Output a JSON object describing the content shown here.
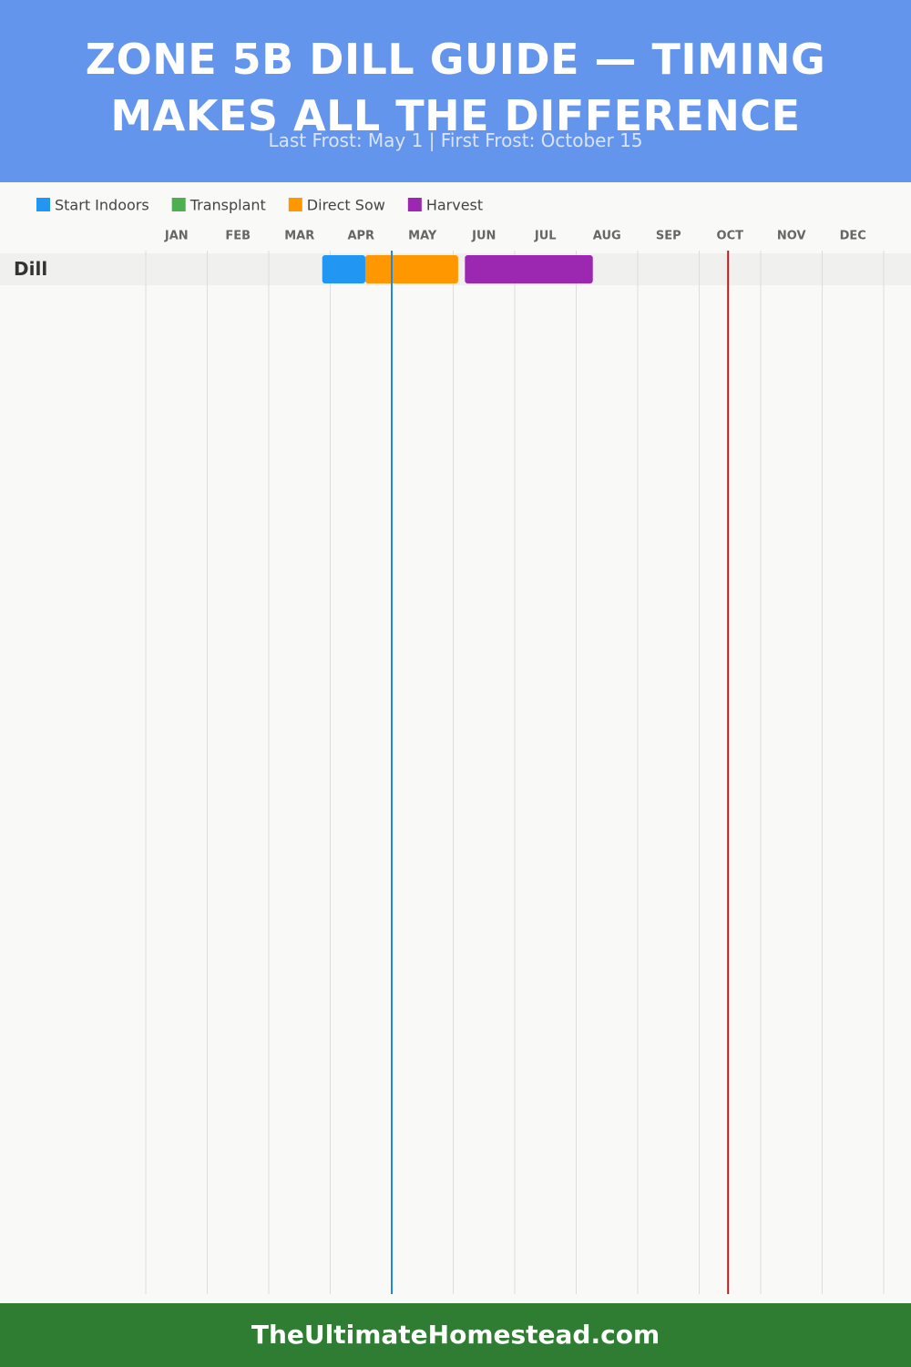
{
  "chart_data": {
    "type": "gantt",
    "title": "ZONE 5B DILL GUIDE — TIMING MAKES ALL THE DIFFERENCE",
    "subtitle": "Last Frost: May 1 | First Frost: October 15",
    "footer": "TheUltimateHomestead.com",
    "categories": [
      "Dill"
    ],
    "xlim": [
      0,
      12
    ],
    "xticks": [
      {
        "value": 0.5,
        "label": "JAN"
      },
      {
        "value": 1.5,
        "label": "FEB"
      },
      {
        "value": 2.5,
        "label": "MAR"
      },
      {
        "value": 3.5,
        "label": "APR"
      },
      {
        "value": 4.5,
        "label": "MAY"
      },
      {
        "value": 5.5,
        "label": "JUN"
      },
      {
        "value": 6.5,
        "label": "JUL"
      },
      {
        "value": 7.5,
        "label": "AUG"
      },
      {
        "value": 8.5,
        "label": "SEP"
      },
      {
        "value": 9.5,
        "label": "OCT"
      },
      {
        "value": 10.5,
        "label": "NOV"
      },
      {
        "value": 11.5,
        "label": "DEC"
      }
    ],
    "grid": [
      0,
      1,
      2,
      3,
      4,
      5,
      6,
      7,
      8,
      9,
      10,
      11,
      12
    ],
    "series": [
      {
        "name": "Start Indoors",
        "color": "#2196f3",
        "start": [
          2.87
        ],
        "end": [
          3.57
        ]
      },
      {
        "name": "Transplant",
        "color": "#4caf50",
        "start": [
          null
        ],
        "end": [
          null
        ]
      },
      {
        "name": "Direct Sow",
        "color": "#ff9800",
        "start": [
          3.57
        ],
        "end": [
          5.08
        ]
      },
      {
        "name": "Harvest",
        "color": "#9c27b0",
        "start": [
          5.19
        ],
        "end": [
          7.27
        ]
      }
    ],
    "frost_lines": [
      {
        "value": 4.0,
        "color": "#1e88e5"
      },
      {
        "value": 9.47,
        "color": "#b71c1c"
      }
    ]
  }
}
